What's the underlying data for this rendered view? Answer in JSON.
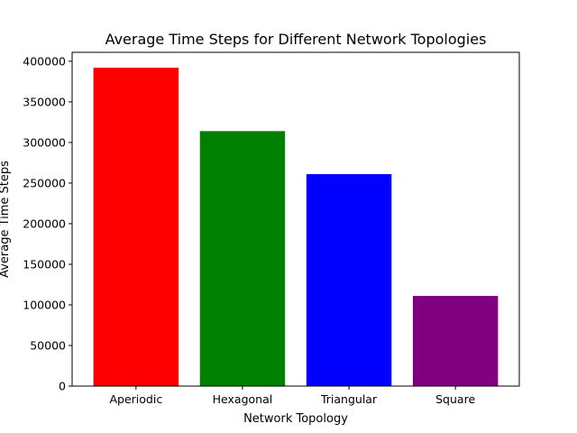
{
  "chart_data": {
    "type": "bar",
    "title": "Average Time Steps for Different Network Topologies",
    "xlabel": "Network Topology",
    "ylabel": "Average Time Steps",
    "categories": [
      "Aperiodic",
      "Hexagonal",
      "Triangular",
      "Square"
    ],
    "values": [
      392000,
      314000,
      261000,
      111000
    ],
    "colors": [
      "#ff0000",
      "#008000",
      "#0000ff",
      "#800080"
    ],
    "ylim": [
      0,
      411000
    ],
    "yticks": [
      0,
      50000,
      100000,
      150000,
      200000,
      250000,
      300000,
      350000,
      400000
    ],
    "ytick_labels": [
      "0",
      "50000",
      "100000",
      "150000",
      "200000",
      "250000",
      "300000",
      "350000",
      "400000"
    ],
    "grid": false,
    "legend": "none"
  }
}
